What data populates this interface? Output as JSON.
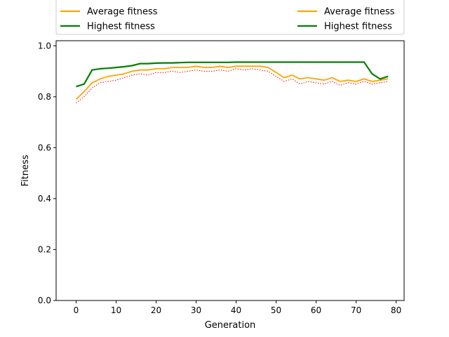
{
  "chart_data": {
    "type": "line",
    "title": "",
    "xlabel": "Generation",
    "ylabel": "Fitness",
    "xlim": [
      -5,
      82
    ],
    "ylim": [
      0.0,
      1.02
    ],
    "xticks": [
      0,
      10,
      20,
      30,
      40,
      50,
      60,
      70,
      80
    ],
    "yticks": [
      0.0,
      0.2,
      0.4,
      0.6,
      0.8,
      1.0
    ],
    "grid": false,
    "legend_placement": "top, outside plot (two columns)",
    "legend": [
      {
        "label": "Average fitness",
        "color": "#ffa500",
        "style": "solid"
      },
      {
        "label": "Highest fitness",
        "color": "#008000",
        "style": "solid"
      },
      {
        "label": "Average fitness",
        "color": "#ffa500",
        "style": "solid"
      },
      {
        "label": "Highest fitness",
        "color": "#008000",
        "style": "solid"
      }
    ],
    "series": [
      {
        "role": "lowest",
        "color": "#ff0000",
        "style": "dotted",
        "x": [
          0,
          2,
          4,
          6,
          8,
          10,
          12,
          14,
          16,
          18,
          20,
          22,
          24,
          26,
          28,
          30,
          32,
          34,
          36,
          38,
          40,
          42,
          44,
          46,
          48,
          50,
          52,
          54,
          56,
          58,
          60,
          62,
          64,
          66,
          68,
          70,
          72,
          74,
          76,
          78
        ],
        "y": [
          0.775,
          0.8,
          0.835,
          0.855,
          0.86,
          0.865,
          0.875,
          0.885,
          0.89,
          0.885,
          0.895,
          0.895,
          0.9,
          0.895,
          0.9,
          0.905,
          0.9,
          0.9,
          0.905,
          0.9,
          0.91,
          0.905,
          0.91,
          0.905,
          0.9,
          0.88,
          0.86,
          0.87,
          0.85,
          0.86,
          0.855,
          0.85,
          0.86,
          0.845,
          0.855,
          0.85,
          0.86,
          0.85,
          0.855,
          0.86
        ]
      },
      {
        "role": "average",
        "color": "#ffa500",
        "style": "solid",
        "x": [
          0,
          2,
          4,
          6,
          8,
          10,
          12,
          14,
          16,
          18,
          20,
          22,
          24,
          26,
          28,
          30,
          32,
          34,
          36,
          38,
          40,
          42,
          44,
          46,
          48,
          50,
          52,
          54,
          56,
          58,
          60,
          62,
          64,
          66,
          68,
          70,
          72,
          74,
          76,
          78
        ],
        "y": [
          0.79,
          0.82,
          0.855,
          0.87,
          0.88,
          0.885,
          0.89,
          0.9,
          0.905,
          0.905,
          0.91,
          0.91,
          0.915,
          0.915,
          0.915,
          0.92,
          0.915,
          0.915,
          0.92,
          0.915,
          0.92,
          0.92,
          0.92,
          0.92,
          0.915,
          0.895,
          0.875,
          0.885,
          0.87,
          0.875,
          0.87,
          0.865,
          0.875,
          0.86,
          0.865,
          0.86,
          0.87,
          0.86,
          0.865,
          0.87
        ]
      },
      {
        "role": "highest",
        "color": "#008000",
        "style": "solid",
        "x": [
          0,
          2,
          4,
          6,
          8,
          10,
          12,
          14,
          16,
          18,
          20,
          22,
          24,
          26,
          28,
          30,
          32,
          34,
          36,
          38,
          40,
          42,
          44,
          46,
          48,
          50,
          52,
          54,
          56,
          58,
          60,
          62,
          64,
          66,
          68,
          70,
          72,
          74,
          76,
          78
        ],
        "y": [
          0.84,
          0.85,
          0.905,
          0.91,
          0.912,
          0.915,
          0.918,
          0.922,
          0.93,
          0.93,
          0.932,
          0.933,
          0.933,
          0.934,
          0.935,
          0.935,
          0.935,
          0.935,
          0.935,
          0.935,
          0.936,
          0.936,
          0.936,
          0.936,
          0.936,
          0.936,
          0.936,
          0.936,
          0.936,
          0.936,
          0.936,
          0.936,
          0.936,
          0.936,
          0.936,
          0.936,
          0.936,
          0.89,
          0.87,
          0.88
        ]
      }
    ]
  }
}
